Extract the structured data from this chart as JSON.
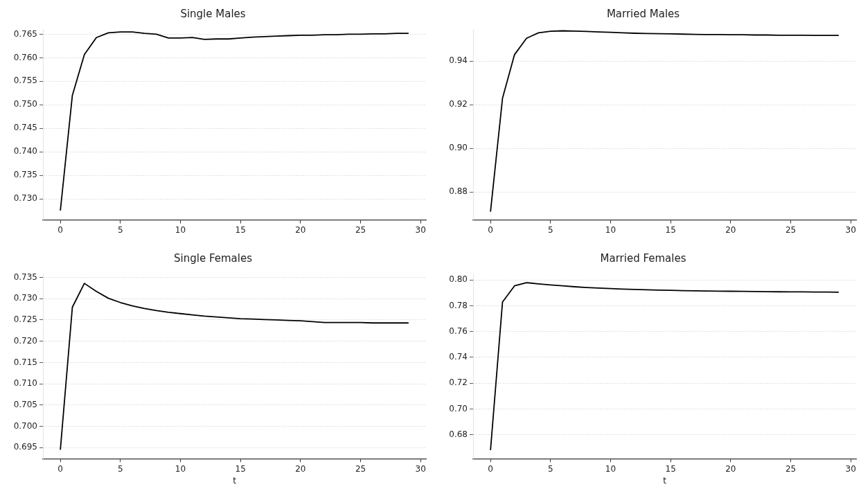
{
  "chart_data": [
    {
      "type": "line",
      "title": "Single Males",
      "x": [
        0,
        1,
        2,
        3,
        4,
        5,
        6,
        7,
        8,
        9,
        10,
        11,
        12,
        13,
        14,
        15,
        16,
        17,
        18,
        19,
        20,
        21,
        22,
        23,
        24,
        25,
        26,
        27,
        28,
        29
      ],
      "values": [
        0.7275,
        0.752,
        0.7607,
        0.7643,
        0.7653,
        0.7655,
        0.7655,
        0.7652,
        0.765,
        0.7642,
        0.7642,
        0.7643,
        0.7639,
        0.764,
        0.764,
        0.7642,
        0.7644,
        0.7645,
        0.7646,
        0.7647,
        0.7648,
        0.7648,
        0.7649,
        0.7649,
        0.765,
        0.765,
        0.7651,
        0.7651,
        0.7652,
        0.7652
      ],
      "color": "#000000",
      "xlim": [
        -1.45,
        30.45
      ],
      "xticks": [
        0,
        5,
        10,
        15,
        20,
        25,
        30
      ],
      "ylim": [
        0.7255,
        0.7661
      ],
      "yticks": [
        {
          "value": 0.73,
          "label": "0.730"
        },
        {
          "value": 0.735,
          "label": "0.735"
        },
        {
          "value": 0.74,
          "label": "0.740"
        },
        {
          "value": 0.745,
          "label": "0.745"
        },
        {
          "value": 0.75,
          "label": "0.750"
        },
        {
          "value": 0.755,
          "label": "0.755"
        },
        {
          "value": 0.76,
          "label": "0.760"
        },
        {
          "value": 0.765,
          "label": "0.765"
        }
      ],
      "grid": "y",
      "marker": "none",
      "line_style": "solid"
    },
    {
      "type": "line",
      "title": "Married Males",
      "x": [
        0,
        1,
        2,
        3,
        4,
        5,
        6,
        7,
        8,
        9,
        10,
        11,
        12,
        13,
        14,
        15,
        16,
        17,
        18,
        19,
        20,
        21,
        22,
        23,
        24,
        25,
        26,
        27,
        28,
        29
      ],
      "values": [
        0.871,
        0.923,
        0.943,
        0.9505,
        0.953,
        0.9537,
        0.9539,
        0.9538,
        0.9536,
        0.9534,
        0.9532,
        0.953,
        0.9528,
        0.9527,
        0.9526,
        0.9525,
        0.9524,
        0.9523,
        0.9522,
        0.9522,
        0.9521,
        0.9521,
        0.952,
        0.952,
        0.9519,
        0.9519,
        0.9519,
        0.9518,
        0.9518,
        0.9518
      ],
      "color": "#000000",
      "xlim": [
        -1.45,
        30.45
      ],
      "xticks": [
        0,
        5,
        10,
        15,
        20,
        25,
        30
      ],
      "ylim": [
        0.8672,
        0.9547
      ],
      "yticks": [
        {
          "value": 0.88,
          "label": "0.88"
        },
        {
          "value": 0.9,
          "label": "0.90"
        },
        {
          "value": 0.92,
          "label": "0.92"
        },
        {
          "value": 0.94,
          "label": "0.94"
        }
      ],
      "grid": "y",
      "marker": "none",
      "line_style": "solid"
    },
    {
      "type": "line",
      "title": "Single Females",
      "xlabel": "t",
      "x": [
        0,
        1,
        2,
        3,
        4,
        5,
        6,
        7,
        8,
        9,
        10,
        11,
        12,
        13,
        14,
        15,
        16,
        17,
        18,
        19,
        20,
        21,
        22,
        23,
        24,
        25,
        26,
        27,
        28,
        29
      ],
      "values": [
        0.6945,
        0.728,
        0.7336,
        0.7317,
        0.7301,
        0.7291,
        0.7283,
        0.7277,
        0.7272,
        0.7268,
        0.7265,
        0.7262,
        0.7259,
        0.7257,
        0.7255,
        0.7253,
        0.7252,
        0.7251,
        0.725,
        0.7249,
        0.7248,
        0.7246,
        0.7244,
        0.7244,
        0.7244,
        0.7244,
        0.7243,
        0.7243,
        0.7243,
        0.7243
      ],
      "color": "#000000",
      "xlim": [
        -1.45,
        30.45
      ],
      "xticks": [
        0,
        5,
        10,
        15,
        20,
        25,
        30
      ],
      "ylim": [
        0.6924,
        0.7359
      ],
      "yticks": [
        {
          "value": 0.695,
          "label": "0.695"
        },
        {
          "value": 0.7,
          "label": "0.700"
        },
        {
          "value": 0.705,
          "label": "0.705"
        },
        {
          "value": 0.71,
          "label": "0.710"
        },
        {
          "value": 0.715,
          "label": "0.715"
        },
        {
          "value": 0.72,
          "label": "0.720"
        },
        {
          "value": 0.725,
          "label": "0.725"
        },
        {
          "value": 0.73,
          "label": "0.730"
        },
        {
          "value": 0.735,
          "label": "0.735"
        }
      ],
      "grid": "y",
      "marker": "none",
      "line_style": "solid"
    },
    {
      "type": "line",
      "title": "Married Females",
      "xlabel": "t",
      "x": [
        0,
        1,
        2,
        3,
        4,
        5,
        6,
        7,
        8,
        9,
        10,
        11,
        12,
        13,
        14,
        15,
        16,
        17,
        18,
        19,
        20,
        21,
        22,
        23,
        24,
        25,
        26,
        27,
        28,
        29
      ],
      "values": [
        0.668,
        0.783,
        0.7955,
        0.798,
        0.797,
        0.7962,
        0.7955,
        0.7948,
        0.7942,
        0.7938,
        0.7934,
        0.793,
        0.7927,
        0.7924,
        0.7922,
        0.792,
        0.7918,
        0.7916,
        0.7915,
        0.7914,
        0.7913,
        0.7912,
        0.7911,
        0.791,
        0.7909,
        0.7908,
        0.7908,
        0.7907,
        0.7907,
        0.7906
      ],
      "color": "#000000",
      "xlim": [
        -1.45,
        30.45
      ],
      "xticks": [
        0,
        5,
        10,
        15,
        20,
        25,
        30
      ],
      "ylim": [
        0.6614,
        0.805
      ],
      "yticks": [
        {
          "value": 0.68,
          "label": "0.68"
        },
        {
          "value": 0.7,
          "label": "0.70"
        },
        {
          "value": 0.72,
          "label": "0.72"
        },
        {
          "value": 0.74,
          "label": "0.74"
        },
        {
          "value": 0.76,
          "label": "0.76"
        },
        {
          "value": 0.78,
          "label": "0.78"
        },
        {
          "value": 0.8,
          "label": "0.80"
        }
      ],
      "grid": "y",
      "marker": "none",
      "line_style": "solid"
    }
  ]
}
